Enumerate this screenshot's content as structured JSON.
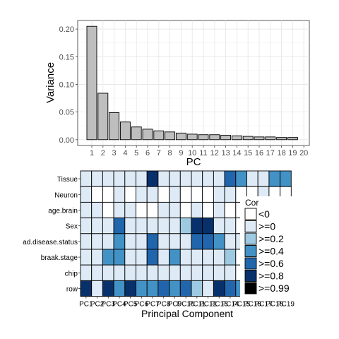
{
  "chart_data": [
    {
      "type": "bar",
      "xlabel": "PC",
      "ylabel": "Variance",
      "categories": [
        "1",
        "2",
        "3",
        "4",
        "5",
        "6",
        "7",
        "8",
        "9",
        "10",
        "11",
        "12",
        "13",
        "14",
        "15",
        "16",
        "17",
        "18",
        "19",
        "20"
      ],
      "values": [
        0.205,
        0.084,
        0.049,
        0.032,
        0.023,
        0.019,
        0.016,
        0.014,
        0.012,
        0.01,
        0.009,
        0.009,
        0.008,
        0.007,
        0.006,
        0.005,
        0.005,
        0.004,
        0.004,
        null
      ],
      "ylim": [
        0,
        0.21
      ],
      "yticks": [
        "0.00",
        "0.05",
        "0.10",
        "0.15",
        "0.20"
      ],
      "grid": true,
      "bar_color": "#bebebe"
    },
    {
      "type": "heatmap",
      "xlabel": "Principal Component",
      "columns": [
        "PC1",
        "PC2",
        "PC3",
        "PC4",
        "PC5",
        "PC6",
        "PC7",
        "PC8",
        "PC9",
        "PC10",
        "PC11",
        "PC12",
        "PC13",
        "PC14",
        "PC15",
        "PC16",
        "PC17",
        "PC18",
        "PC19"
      ],
      "rows": [
        "Tissue",
        "Neuron",
        "age.brain",
        "Sex",
        "ad.disease.status",
        "braak.stage",
        "chip",
        "row"
      ],
      "values": [
        [
          1,
          1,
          1,
          1,
          1,
          1,
          5,
          1,
          1,
          1,
          1,
          1,
          1,
          4,
          3,
          1,
          1,
          3,
          3
        ],
        [
          1,
          0,
          0,
          1,
          0,
          1,
          1,
          0,
          1,
          0,
          0,
          0,
          1,
          1,
          0,
          0,
          1,
          0,
          0
        ],
        [
          1,
          1,
          0,
          1,
          1,
          0,
          0,
          1,
          1,
          0,
          1,
          0,
          1,
          0,
          0,
          1,
          0,
          0,
          0
        ],
        [
          1,
          1,
          1,
          4,
          1,
          1,
          1,
          1,
          1,
          2,
          5,
          5,
          1,
          1,
          0,
          1,
          0,
          0,
          0
        ],
        [
          1,
          1,
          1,
          3,
          1,
          1,
          4,
          1,
          1,
          1,
          4,
          4,
          3,
          1,
          1,
          1,
          0,
          1,
          0
        ],
        [
          1,
          1,
          3,
          3,
          1,
          1,
          4,
          1,
          3,
          1,
          1,
          1,
          1,
          2,
          0,
          6,
          1,
          0,
          0
        ],
        [
          1,
          1,
          1,
          1,
          1,
          1,
          1,
          1,
          1,
          1,
          1,
          1,
          1,
          1,
          0,
          0,
          0,
          1,
          0
        ],
        [
          5,
          1,
          5,
          3,
          5,
          3,
          3,
          4,
          3,
          4,
          2,
          1,
          5,
          4,
          3,
          2,
          1,
          1,
          0
        ]
      ],
      "colors": [
        "#ffffff",
        "#deebf7",
        "#9ecae1",
        "#4292c6",
        "#2166ac",
        "#08306b",
        "#000000"
      ],
      "legend": {
        "title": "Cor",
        "entries": [
          "<0",
          ">=0",
          ">=0.2",
          ">=0.4",
          ">=0.6",
          ">=0.8",
          ">=0.99"
        ]
      }
    }
  ]
}
